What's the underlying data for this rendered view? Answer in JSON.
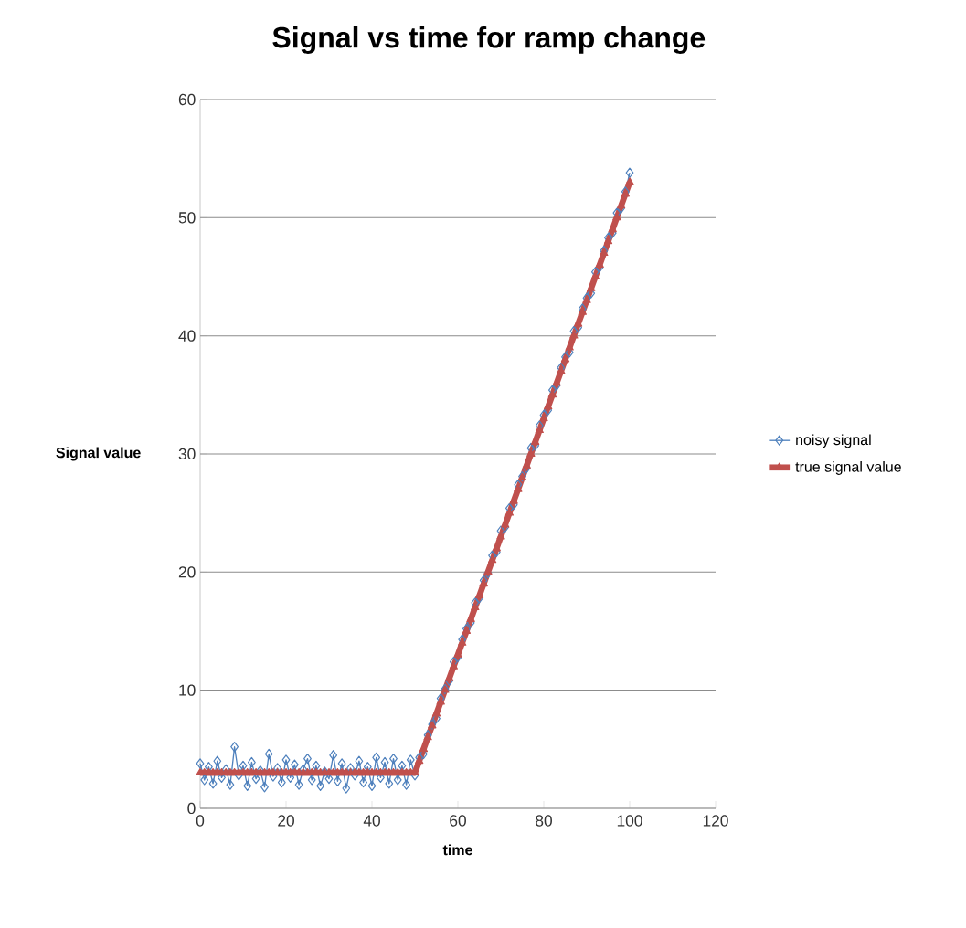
{
  "chart_data": {
    "type": "line",
    "title": "Signal vs time for ramp change",
    "xlabel": "time",
    "ylabel": "Signal value",
    "x": [
      0,
      1,
      2,
      3,
      4,
      5,
      6,
      7,
      8,
      9,
      10,
      11,
      12,
      13,
      14,
      15,
      16,
      17,
      18,
      19,
      20,
      21,
      22,
      23,
      24,
      25,
      26,
      27,
      28,
      29,
      30,
      31,
      32,
      33,
      34,
      35,
      36,
      37,
      38,
      39,
      40,
      41,
      42,
      43,
      44,
      45,
      46,
      47,
      48,
      49,
      50,
      51,
      52,
      53,
      54,
      55,
      56,
      57,
      58,
      59,
      60,
      61,
      62,
      63,
      64,
      65,
      66,
      67,
      68,
      69,
      70,
      71,
      72,
      73,
      74,
      75,
      76,
      77,
      78,
      79,
      80,
      81,
      82,
      83,
      84,
      85,
      86,
      87,
      88,
      89,
      90,
      91,
      92,
      93,
      94,
      95,
      96,
      97,
      98,
      99,
      100
    ],
    "series": [
      {
        "name": "noisy signal",
        "color": "#4f81bd",
        "marker": "diamond",
        "values": [
          3.8,
          2.4,
          3.5,
          2.1,
          4.0,
          2.6,
          3.3,
          2.0,
          5.2,
          2.8,
          3.6,
          1.9,
          3.9,
          2.5,
          3.2,
          1.8,
          4.6,
          2.7,
          3.4,
          2.2,
          4.1,
          2.6,
          3.7,
          2.0,
          3.3,
          4.2,
          2.4,
          3.6,
          1.9,
          3.1,
          2.5,
          4.5,
          2.3,
          3.8,
          1.7,
          3.4,
          2.8,
          4.0,
          2.2,
          3.5,
          1.9,
          4.3,
          2.6,
          3.9,
          2.1,
          4.2,
          2.4,
          3.6,
          2.0,
          4.1,
          2.8,
          4.3,
          4.6,
          6.2,
          7.1,
          7.6,
          9.3,
          10.1,
          10.8,
          12.4,
          12.8,
          14.3,
          15.2,
          15.7,
          17.4,
          17.8,
          19.3,
          19.9,
          21.4,
          21.7,
          23.5,
          23.8,
          25.4,
          25.7,
          27.4,
          28.1,
          28.8,
          30.5,
          30.7,
          32.4,
          33.3,
          33.7,
          35.4,
          35.8,
          37.3,
          38.2,
          38.6,
          40.4,
          40.7,
          42.3,
          43.2,
          43.6,
          45.4,
          45.8,
          47.2,
          48.3,
          48.7,
          50.4,
          50.8,
          52.2,
          53.8
        ]
      },
      {
        "name": "true signal value",
        "color": "#c0504d",
        "marker": "triangle",
        "values": [
          3,
          3,
          3,
          3,
          3,
          3,
          3,
          3,
          3,
          3,
          3,
          3,
          3,
          3,
          3,
          3,
          3,
          3,
          3,
          3,
          3,
          3,
          3,
          3,
          3,
          3,
          3,
          3,
          3,
          3,
          3,
          3,
          3,
          3,
          3,
          3,
          3,
          3,
          3,
          3,
          3,
          3,
          3,
          3,
          3,
          3,
          3,
          3,
          3,
          3,
          3,
          4,
          5,
          6,
          7,
          8,
          9,
          10,
          11,
          12,
          13,
          14,
          15,
          16,
          17,
          18,
          19,
          20,
          21,
          22,
          23,
          24,
          25,
          26,
          27,
          28,
          29,
          30,
          31,
          32,
          33,
          34,
          35,
          36,
          37,
          38,
          39,
          40,
          41,
          42,
          43,
          44,
          45,
          46,
          47,
          48,
          49,
          50,
          51,
          52,
          53
        ]
      }
    ],
    "xlim": [
      0,
      120
    ],
    "xticks": [
      0,
      20,
      40,
      60,
      80,
      100,
      120
    ],
    "ylim": [
      0,
      60
    ],
    "yticks": [
      0,
      10,
      20,
      30,
      40,
      50,
      60
    ],
    "grid": "y",
    "legend": "right"
  }
}
